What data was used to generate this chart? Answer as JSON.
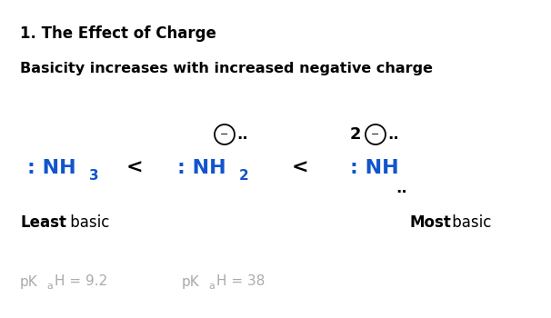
{
  "bg_color": "#ffffff",
  "blue_color": "#1155cc",
  "black_color": "#000000",
  "gray_color": "#aaaaaa",
  "title1_num": "1. ",
  "title1_rest": "The Effect of Charge",
  "title2": "Basicity increases with increased negative charge",
  "mol1_text": ": NH",
  "mol1_sub": "3",
  "mol2_text": ": NH",
  "mol2_sub": "2",
  "mol3_text": ": NH",
  "least_bold": "Least",
  "least_rest": " basic",
  "most_bold": "Most",
  "most_rest": " basic",
  "pka1_val": "H = 9.2",
  "pka2_val": "H = 38"
}
